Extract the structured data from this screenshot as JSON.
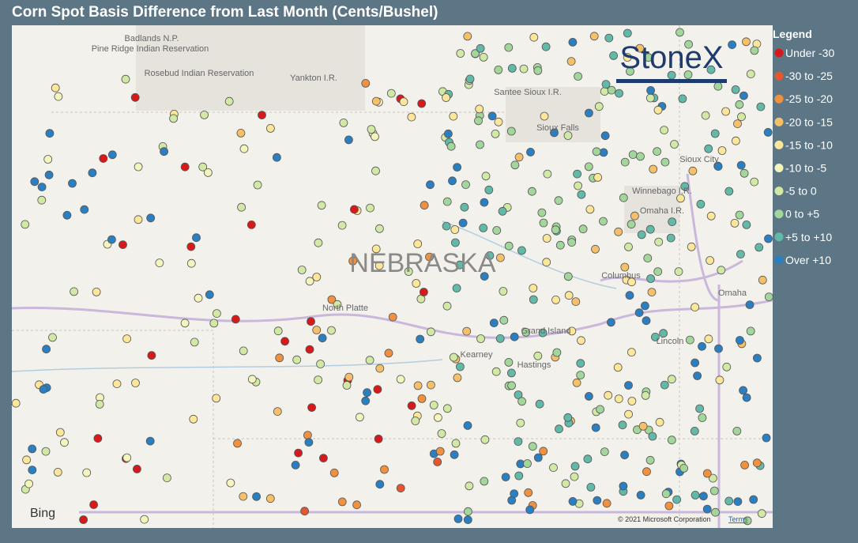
{
  "header": {
    "title": "Corn Spot Basis Difference from Last Month (Cents/Bushel)"
  },
  "legend": {
    "title": "Legend",
    "items": [
      {
        "label": "Under -30",
        "color": "#d7191c"
      },
      {
        "label": "-30 to -25",
        "color": "#e4572e"
      },
      {
        "label": "-25 to -20",
        "color": "#f0913f"
      },
      {
        "label": "-20 to -15",
        "color": "#f6c06a"
      },
      {
        "label": "-15 to -10",
        "color": "#fbe69a"
      },
      {
        "label": "-10 to -5",
        "color": "#f4f4bd"
      },
      {
        "label": "-5 to 0",
        "color": "#d2e9a6"
      },
      {
        "label": "0 to +5",
        "color": "#a3d69b"
      },
      {
        "label": "+5 to +10",
        "color": "#62b9a8"
      },
      {
        "label": "Over +10",
        "color": "#2b7fc0"
      }
    ]
  },
  "map": {
    "state_label": "NEBRASKA",
    "logo": "StoneX",
    "places": [
      "Badlands N.P.",
      "Pine Ridge Indian Reservation",
      "Rosebud Indian Reservation",
      "Yankton I.R.",
      "Santee Sioux I.R.",
      "Sioux Falls",
      "Sioux City",
      "Winnebago I.R.",
      "Omaha I.R.",
      "North Platte",
      "Columbus",
      "Grand Island",
      "Kearney",
      "Hastings",
      "Omaha",
      "Lincoln"
    ],
    "attribution": "© 2021 Microsoft Corporation",
    "terms": "Terms",
    "provider": "Bing"
  }
}
